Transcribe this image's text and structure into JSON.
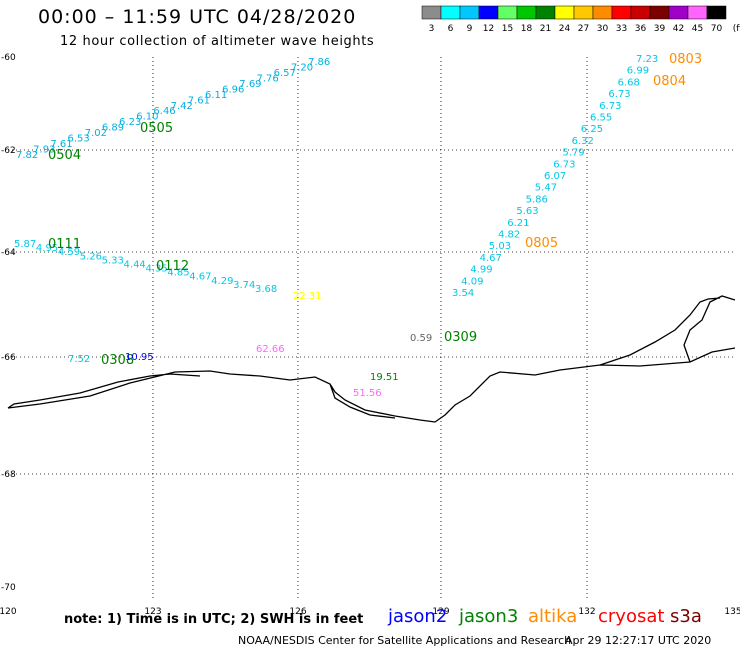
{
  "header": {
    "title": "00:00 – 11:59 UTC 04/28/2020",
    "subtitle": "12 hour collection of altimeter wave heights"
  },
  "colorbar": {
    "ticks": [
      "3",
      "6",
      "9",
      "12",
      "15",
      "18",
      "21",
      "24",
      "27",
      "30",
      "33",
      "36",
      "39",
      "42",
      "45",
      "70",
      "(ft)"
    ],
    "colors": [
      "#8c8c8c",
      "#00ffff",
      "#00c8ff",
      "#0000ff",
      "#64ff64",
      "#00c800",
      "#008200",
      "#ffff00",
      "#ffc800",
      "#ff8c00",
      "#ff0000",
      "#c80000",
      "#7d0000",
      "#a000c8",
      "#ff64ff",
      "#000000"
    ]
  },
  "map": {
    "lon_labels": [
      "120",
      "123",
      "126",
      "129",
      "132",
      "135"
    ],
    "lat_labels": [
      "-60",
      "-62",
      "-64",
      "-66",
      "-68",
      "-70"
    ],
    "track_labels": [
      {
        "text": "0505",
        "color": "#008200"
      },
      {
        "text": "0504",
        "color": "#008200"
      },
      {
        "text": "0111",
        "color": "#008200"
      },
      {
        "text": "0112",
        "color": "#008200"
      },
      {
        "text": "0308",
        "color": "#008200"
      },
      {
        "text": "0309",
        "color": "#008200"
      },
      {
        "text": "0803",
        "color": "#ff8c00"
      },
      {
        "text": "0804",
        "color": "#ff8c00"
      },
      {
        "text": "0805",
        "color": "#ff8c00"
      }
    ],
    "tracks": [
      {
        "id": "t0505",
        "color": "#00b0e0",
        "values": [
          "7.82",
          "7.93",
          "7.61",
          "6.53",
          "7.02",
          "6.89",
          "6.23",
          "6.10",
          "6.46",
          "7.42",
          "7.61",
          "6.11",
          "6.96",
          "7.69",
          "7.76",
          "6.57",
          "7.20",
          "7.86"
        ]
      },
      {
        "id": "t0111",
        "color": "#00c8e6",
        "values": [
          "5.87",
          "4.95",
          "4.59",
          "5.26",
          "5.33",
          "4.44",
          "4.35",
          "4.85",
          "4.67",
          "4.29",
          "3.74",
          "3.68"
        ]
      },
      {
        "id": "t0308",
        "color": "#00c8e6",
        "values": [
          "7.52"
        ]
      },
      {
        "id": "t0803",
        "color": "#00c8e6",
        "values": [
          "7.23",
          "6.99",
          "6.68",
          "6.73",
          "6.73",
          "6.55",
          "6.25",
          "6.32",
          "5.79",
          "6.73",
          "6.07",
          "5.47",
          "5.86",
          "5.63",
          "6.21",
          "4.82",
          "5.03",
          "4.67",
          "4.99",
          "4.09",
          "3.54"
        ]
      }
    ],
    "misc_values": [
      {
        "text": "22.31",
        "color": "#ffff00"
      },
      {
        "text": "10.95",
        "color": "#0000ff"
      },
      {
        "text": "62.66",
        "color": "#ff64ff"
      },
      {
        "text": "0.59",
        "color": "#666666"
      },
      {
        "text": "19.51",
        "color": "#008200"
      },
      {
        "text": "51.56",
        "color": "#ff64ff"
      }
    ]
  },
  "legend": [
    {
      "name": "jason2",
      "color": "#0000ff"
    },
    {
      "name": "jason3",
      "color": "#008200"
    },
    {
      "name": "altika",
      "color": "#ff8c00"
    },
    {
      "name": "cryosat",
      "color": "#ff0000"
    },
    {
      "name": "s3a",
      "color": "#7d0000"
    }
  ],
  "footer": {
    "note": "note:  1) Time is in UTC;  2) SWH is in feet",
    "credit": "NOAA/NESDIS Center for Satellite Applications and Research",
    "timestamp": "Apr 29 12:27:17 UTC 2020"
  }
}
